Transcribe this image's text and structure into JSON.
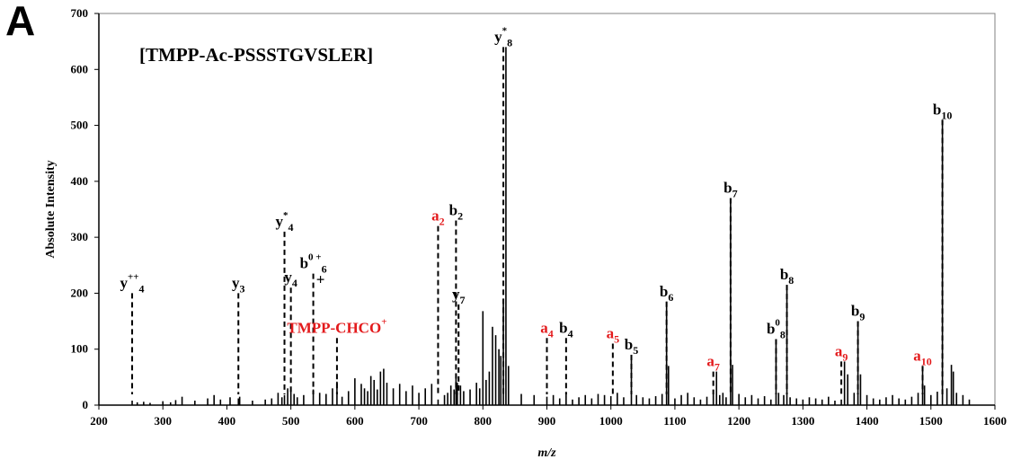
{
  "panel_label": "A",
  "chart_data": {
    "type": "bar",
    "title": "[TMPP-Ac-PSSSTGVSLER]",
    "xlabel": "m/z",
    "ylabel": "Absolute Intensity",
    "xlim": [
      200,
      1600
    ],
    "ylim": [
      0,
      700
    ],
    "xticks": [
      "200",
      "300",
      "400",
      "500",
      "600",
      "700",
      "800",
      "900",
      "1000",
      "1100",
      "1200",
      "1300",
      "1400",
      "1500",
      "1600"
    ],
    "yticks": [
      "0",
      "100",
      "200",
      "300",
      "400",
      "500",
      "600",
      "700"
    ],
    "grid": false,
    "colors": {
      "ion_black": "#000000",
      "ion_red": "#e31a1c"
    },
    "peaks": {
      "x": [
        252,
        260,
        270,
        280,
        300,
        312,
        320,
        330,
        350,
        370,
        380,
        390,
        405,
        418,
        420,
        440,
        460,
        470,
        480,
        486,
        490,
        495,
        500,
        505,
        510,
        520,
        535,
        545,
        555,
        565,
        572,
        580,
        590,
        600,
        610,
        615,
        620,
        625,
        630,
        635,
        640,
        645,
        650,
        660,
        670,
        680,
        690,
        700,
        710,
        720,
        730,
        740,
        745,
        750,
        755,
        758,
        760,
        765,
        770,
        780,
        790,
        795,
        800,
        805,
        810,
        815,
        820,
        825,
        828,
        832,
        836,
        840,
        860,
        880,
        900,
        910,
        920,
        930,
        940,
        950,
        960,
        970,
        980,
        990,
        1000,
        1010,
        1020,
        1032,
        1040,
        1050,
        1060,
        1070,
        1080,
        1087,
        1090,
        1100,
        1110,
        1120,
        1130,
        1140,
        1150,
        1160,
        1165,
        1170,
        1175,
        1180,
        1187,
        1190,
        1200,
        1210,
        1220,
        1230,
        1240,
        1250,
        1258,
        1262,
        1270,
        1275,
        1280,
        1290,
        1300,
        1310,
        1320,
        1330,
        1340,
        1350,
        1360,
        1365,
        1370,
        1380,
        1386,
        1390,
        1400,
        1410,
        1420,
        1430,
        1440,
        1450,
        1460,
        1470,
        1480,
        1487,
        1490,
        1500,
        1510,
        1518,
        1525,
        1532,
        1535,
        1540,
        1550,
        1560
      ],
      "intensity": [
        8,
        5,
        6,
        4,
        7,
        5,
        9,
        15,
        8,
        12,
        18,
        10,
        14,
        12,
        15,
        8,
        10,
        12,
        22,
        14,
        18,
        30,
        25,
        20,
        14,
        18,
        28,
        22,
        20,
        30,
        42,
        15,
        25,
        48,
        38,
        30,
        25,
        52,
        45,
        28,
        60,
        65,
        40,
        30,
        38,
        25,
        35,
        22,
        30,
        38,
        10,
        18,
        22,
        35,
        28,
        55,
        40,
        35,
        25,
        28,
        40,
        30,
        168,
        45,
        60,
        140,
        125,
        100,
        88,
        190,
        640,
        70,
        20,
        18,
        15,
        18,
        12,
        22,
        10,
        14,
        18,
        12,
        20,
        18,
        16,
        22,
        14,
        90,
        18,
        14,
        12,
        16,
        20,
        185,
        70,
        12,
        18,
        22,
        14,
        10,
        15,
        20,
        60,
        18,
        22,
        14,
        370,
        72,
        20,
        14,
        18,
        12,
        16,
        10,
        118,
        22,
        18,
        215,
        14,
        12,
        10,
        14,
        12,
        10,
        15,
        8,
        10,
        78,
        55,
        22,
        150,
        55,
        18,
        12,
        10,
        14,
        18,
        12,
        10,
        15,
        22,
        70,
        35,
        18,
        24,
        510,
        30,
        72,
        60,
        22,
        18,
        10
      ]
    },
    "ion_labels": [
      {
        "text": "y",
        "sub": "4",
        "sup": "++",
        "x": 252,
        "y_top": 200,
        "color": "black"
      },
      {
        "text": "y",
        "sub": "3",
        "sup": "",
        "x": 418,
        "y_top": 200,
        "color": "black"
      },
      {
        "text": "y",
        "sub": "4",
        "sup": "*",
        "x": 490,
        "y_top": 310,
        "color": "black"
      },
      {
        "text": "y",
        "sub": "4",
        "sup": "",
        "x": 500,
        "y_top": 210,
        "color": "black"
      },
      {
        "text": "b",
        "sub": "6",
        "sup": "0 +",
        "sup2": "+",
        "x": 535,
        "y_top": 235,
        "color": "black"
      },
      {
        "text": "TMPP-CHCO",
        "sub": "",
        "sup": "+",
        "x": 572,
        "y_top": 120,
        "color": "red"
      },
      {
        "text": "a",
        "sub": "2",
        "sup": "",
        "x": 730,
        "y_top": 320,
        "color": "red"
      },
      {
        "text": "b",
        "sub": "2",
        "sup": "",
        "x": 758,
        "y_top": 330,
        "color": "black"
      },
      {
        "text": "y",
        "sub": "7",
        "sup": "",
        "x": 762,
        "y_top": 180,
        "color": "black"
      },
      {
        "text": "y",
        "sub": "8",
        "sup": "*",
        "x": 832,
        "y_top": 640,
        "color": "black"
      },
      {
        "text": "a",
        "sub": "4",
        "sup": "",
        "x": 900,
        "y_top": 120,
        "color": "red"
      },
      {
        "text": "b",
        "sub": "4",
        "sup": "",
        "x": 930,
        "y_top": 120,
        "color": "black"
      },
      {
        "text": "a",
        "sub": "5",
        "sup": "",
        "x": 1003,
        "y_top": 110,
        "color": "red"
      },
      {
        "text": "b",
        "sub": "5",
        "sup": "",
        "x": 1032,
        "y_top": 90,
        "color": "black"
      },
      {
        "text": "b",
        "sub": "6",
        "sup": "",
        "x": 1087,
        "y_top": 185,
        "color": "black"
      },
      {
        "text": "a",
        "sub": "7",
        "sup": "",
        "x": 1160,
        "y_top": 60,
        "color": "red"
      },
      {
        "text": "b",
        "sub": "7",
        "sup": "",
        "x": 1187,
        "y_top": 370,
        "color": "black"
      },
      {
        "text": "b",
        "sub": "8",
        "sup": "0",
        "x": 1258,
        "y_top": 118,
        "color": "black"
      },
      {
        "text": "b",
        "sub": "8",
        "sup": "",
        "x": 1275,
        "y_top": 215,
        "color": "black"
      },
      {
        "text": "a",
        "sub": "9",
        "sup": "",
        "x": 1360,
        "y_top": 78,
        "color": "red"
      },
      {
        "text": "b",
        "sub": "9",
        "sup": "",
        "x": 1386,
        "y_top": 150,
        "color": "black"
      },
      {
        "text": "a",
        "sub": "10",
        "sup": "",
        "x": 1487,
        "y_top": 70,
        "color": "red"
      },
      {
        "text": "b",
        "sub": "10",
        "sup": "",
        "x": 1518,
        "y_top": 510,
        "color": "black"
      }
    ]
  }
}
